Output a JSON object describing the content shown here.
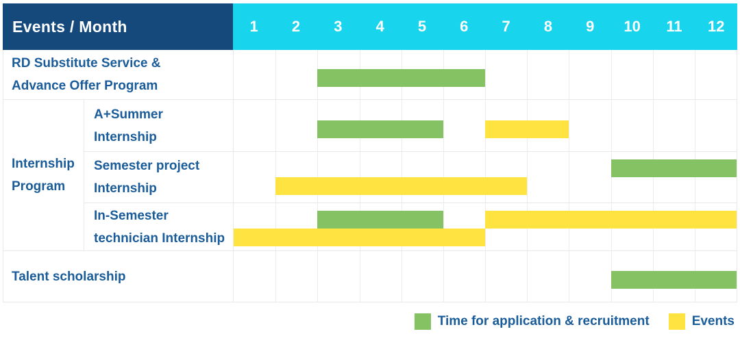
{
  "colors": {
    "header_blue": "#15497C",
    "month_cyan": "#18D4EC",
    "text_blue": "#1A5C99",
    "bar_green": "#84C263",
    "bar_yellow": "#FFE340",
    "grid_line": "#ECECEC",
    "table_border": "#E8E8E8"
  },
  "table": {
    "corner_label": "Events / Month",
    "months": [
      "1",
      "2",
      "3",
      "4",
      "5",
      "6",
      "7",
      "8",
      "9",
      "10",
      "11",
      "12"
    ]
  },
  "group": {
    "label": "Internship\nProgram"
  },
  "rows": [
    {
      "label": "RD Substitute Service &\nAdvance Offer Program",
      "lines": 1,
      "bars": [
        {
          "color": "green",
          "start": 3,
          "end": 6,
          "line": 0
        }
      ]
    },
    {
      "label": "A+Summer\nInternship",
      "lines": 1,
      "bars": [
        {
          "color": "green",
          "start": 3,
          "end": 5,
          "line": 0
        },
        {
          "color": "yellow",
          "start": 7,
          "end": 8,
          "line": 0
        }
      ]
    },
    {
      "label": "Semester project\nInternship",
      "lines": 2,
      "bars": [
        {
          "color": "green",
          "start": 10,
          "end": 12,
          "line": 0
        },
        {
          "color": "yellow",
          "start": 2,
          "end": 7,
          "line": 1
        }
      ]
    },
    {
      "label": "In-Semester\ntechnician Internship",
      "lines": 2,
      "bars": [
        {
          "color": "green",
          "start": 3,
          "end": 5,
          "line": 0
        },
        {
          "color": "yellow",
          "start": 7,
          "end": 12,
          "line": 0
        },
        {
          "color": "yellow",
          "start": 1,
          "end": 6,
          "line": 1
        }
      ]
    },
    {
      "label": "Talent scholarship",
      "lines": 1,
      "bars": [
        {
          "color": "green",
          "start": 10,
          "end": 12,
          "line": 0
        }
      ]
    }
  ],
  "legend": {
    "items": [
      {
        "label": "Time for application & recruitment",
        "color": "green"
      },
      {
        "label": "Events",
        "color": "yellow"
      }
    ]
  },
  "chart_data": {
    "type": "gantt",
    "title": "Events / Month",
    "x_axis": {
      "label": "Month",
      "ticks": [
        1,
        2,
        3,
        4,
        5,
        6,
        7,
        8,
        9,
        10,
        11,
        12
      ],
      "range": [
        1,
        12
      ]
    },
    "categories": [
      "RD Substitute Service & Advance Offer Program",
      "A+Summer Internship",
      "Semester project Internship",
      "In-Semester technician Internship",
      "Talent scholarship"
    ],
    "group": {
      "label": "Internship Program",
      "member_rows": [
        1,
        2,
        3
      ]
    },
    "series": [
      {
        "name": "Time for application & recruitment",
        "color": "#84C263",
        "spans": [
          {
            "row": 0,
            "start_month": 3,
            "end_month": 6
          },
          {
            "row": 1,
            "start_month": 3,
            "end_month": 5
          },
          {
            "row": 2,
            "start_month": 10,
            "end_month": 12
          },
          {
            "row": 3,
            "start_month": 3,
            "end_month": 5
          },
          {
            "row": 4,
            "start_month": 10,
            "end_month": 12
          }
        ]
      },
      {
        "name": "Events",
        "color": "#FFE340",
        "spans": [
          {
            "row": 1,
            "start_month": 7,
            "end_month": 8
          },
          {
            "row": 2,
            "start_month": 2,
            "end_month": 7
          },
          {
            "row": 3,
            "start_month": 7,
            "end_month": 12
          },
          {
            "row": 3,
            "start_month": 1,
            "end_month": 6
          }
        ]
      }
    ],
    "legend_position": "bottom-right",
    "grid": true
  }
}
